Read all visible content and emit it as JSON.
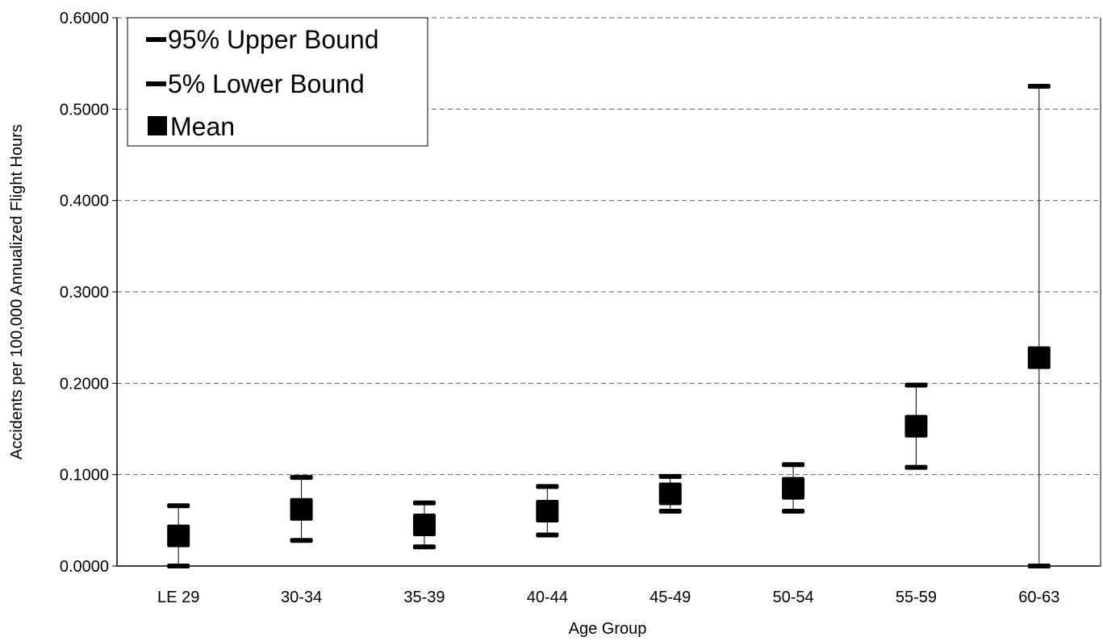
{
  "chart_data": {
    "type": "scatter",
    "title": "",
    "xlabel": "Age Group",
    "ylabel": "Accidents per 100,000 Annualized Flight Hours",
    "ylim": [
      0,
      0.6
    ],
    "yticks": [
      "0.0000",
      "0.1000",
      "0.2000",
      "0.3000",
      "0.4000",
      "0.5000",
      "0.6000"
    ],
    "grid": "horizontal dashed",
    "legend_position": "top-left",
    "categories": [
      "LE 29",
      "30-34",
      "35-39",
      "40-44",
      "45-49",
      "50-54",
      "55-59",
      "60-63"
    ],
    "series": [
      {
        "name": "95% Upper Bound",
        "marker": "dash",
        "values": [
          0.066,
          0.097,
          0.069,
          0.087,
          0.098,
          0.111,
          0.198,
          0.525
        ]
      },
      {
        "name": "5% Lower Bound",
        "marker": "dash",
        "values": [
          0.0,
          0.028,
          0.021,
          0.034,
          0.06,
          0.06,
          0.108,
          0.0
        ]
      },
      {
        "name": "Mean",
        "marker": "square",
        "values": [
          0.033,
          0.062,
          0.045,
          0.06,
          0.079,
          0.085,
          0.153,
          0.228
        ]
      }
    ]
  }
}
